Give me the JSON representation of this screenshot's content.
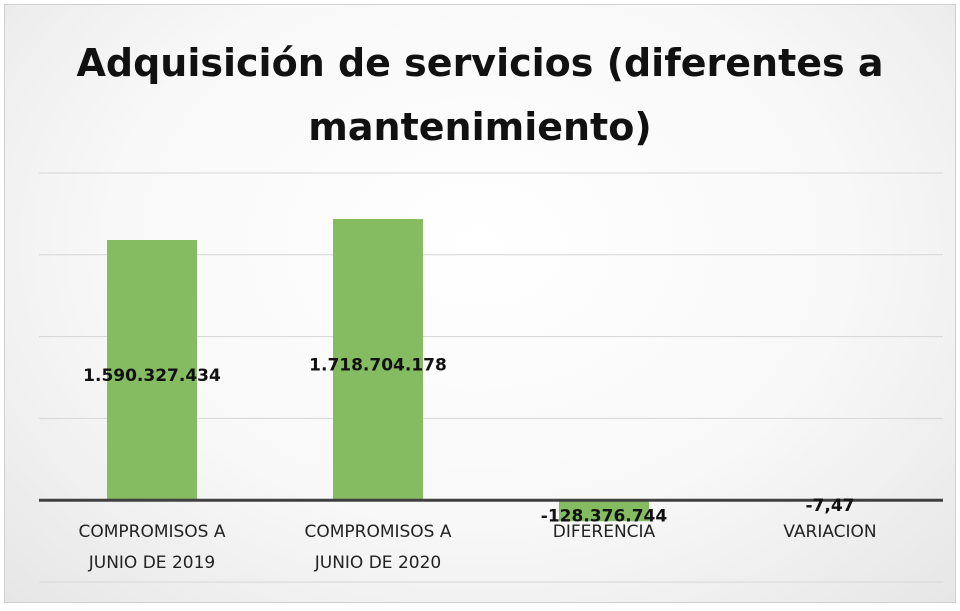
{
  "chart_data": {
    "type": "bar",
    "title": "Adquisición de servicios (diferentes a mantenimiento)",
    "categories": [
      "COMPROMISOS A JUNIO DE  2019",
      "COMPROMISOS A JUNIO DE 2020",
      "DIFERENCIA",
      "VARIACION"
    ],
    "values": [
      1590327434,
      1718704178,
      -128376744,
      -7.47
    ],
    "value_labels": [
      "1.590.327.434",
      "1.718.704.178",
      "-128.376.744",
      "-7,47"
    ],
    "color": "#85bb61",
    "ylim": [
      -500000000,
      2000000000
    ],
    "yticks": [
      -500000000,
      0,
      500000000,
      1000000000,
      1500000000,
      2000000000
    ],
    "grid": true
  }
}
